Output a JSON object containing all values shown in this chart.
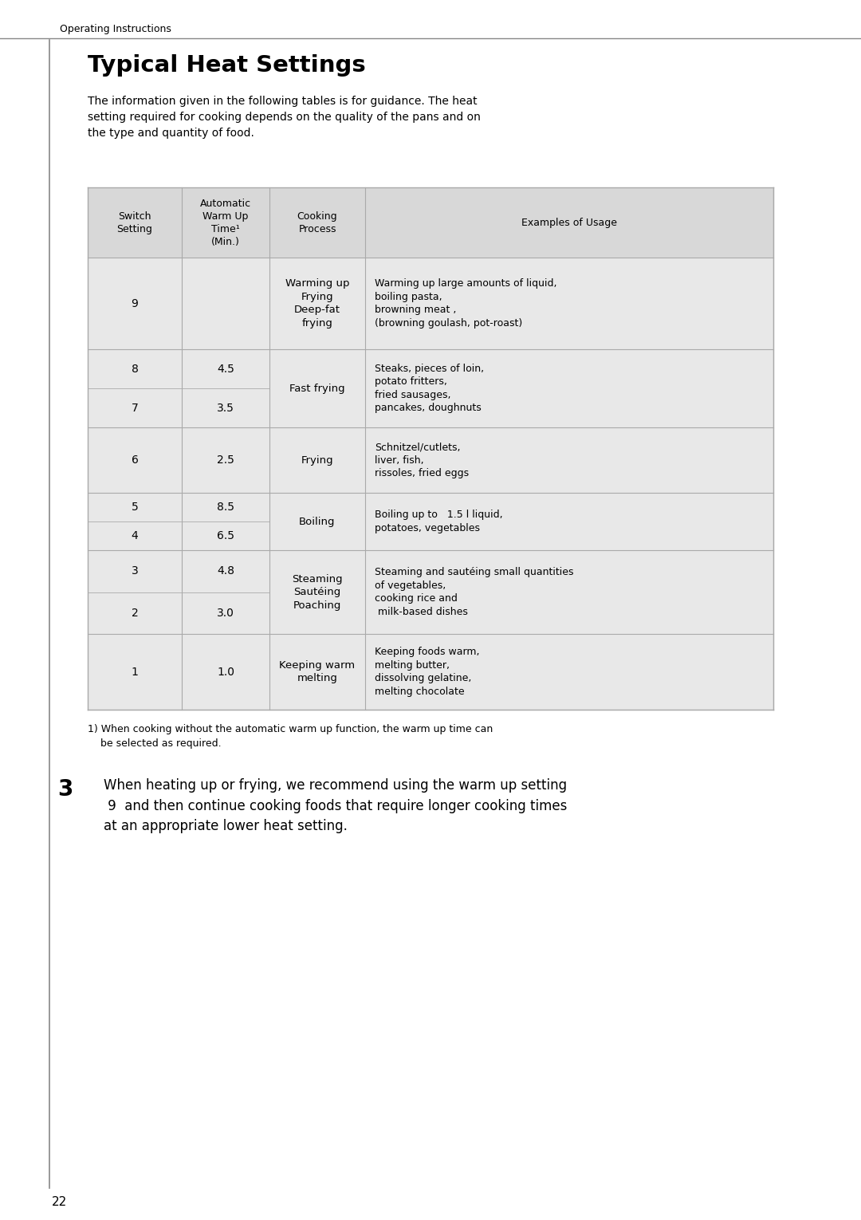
{
  "page_bg": "#ffffff",
  "header_text": "Operating Instructions",
  "title": "Typical Heat Settings",
  "intro_text": "The information given in the following tables is for guidance. The heat\nsetting required for cooking depends on the quality of the pans and on\nthe type and quantity of food.",
  "table_bg": "#e8e8e8",
  "table_border": "#aaaaaa",
  "col_headers": [
    "Switch\nSetting",
    "Automatic\nWarm Up\nTime¹\n(Min.)",
    "Cooking\nProcess",
    "Examples of Usage"
  ],
  "row_groups": [
    {
      "switches": [
        "9"
      ],
      "times": [
        ""
      ],
      "process": "Warming up\nFrying\nDeep-fat\nfrying",
      "examples": "Warming up large amounts of liquid,\nboiling pasta,\nbrowning meat ,\n(browning goulash, pot-roast)"
    },
    {
      "switches": [
        "8",
        "7"
      ],
      "times": [
        "4.5",
        "3.5"
      ],
      "process": "Fast frying",
      "examples": "Steaks, pieces of loin,\npotato fritters,\nfried sausages,\npancakes, doughnuts"
    },
    {
      "switches": [
        "6"
      ],
      "times": [
        "2.5"
      ],
      "process": "Frying",
      "examples": "Schnitzel/cutlets,\nliver, fish,\nrissoles, fried eggs"
    },
    {
      "switches": [
        "5",
        "4"
      ],
      "times": [
        "8.5",
        "6.5"
      ],
      "process": "Boiling",
      "examples": "Boiling up to   1.5 l liquid,\npotatoes, vegetables"
    },
    {
      "switches": [
        "3",
        "2"
      ],
      "times": [
        "4.8",
        "3.0"
      ],
      "process": "Steaming\nSautéing\nPoaching",
      "examples": "Steaming and sautéing small quantities\nof vegetables,\ncooking rice and\n milk-based dishes"
    },
    {
      "switches": [
        "1"
      ],
      "times": [
        "1.0"
      ],
      "process": "Keeping warm\nmelting",
      "examples": "Keeping foods warm,\nmelting butter,\ndissolving gelatine,\nmelting chocolate"
    }
  ],
  "footnote": "1) When cooking without the automatic warm up function, the warm up time can\n    be selected as required.",
  "note_number": "3",
  "note_text": "When heating up or frying, we recommend using the warm up setting\n 9  and then continue cooking foods that require longer cooking times\nat an appropriate lower heat setting.",
  "page_number": "22",
  "text_color": "#000000"
}
